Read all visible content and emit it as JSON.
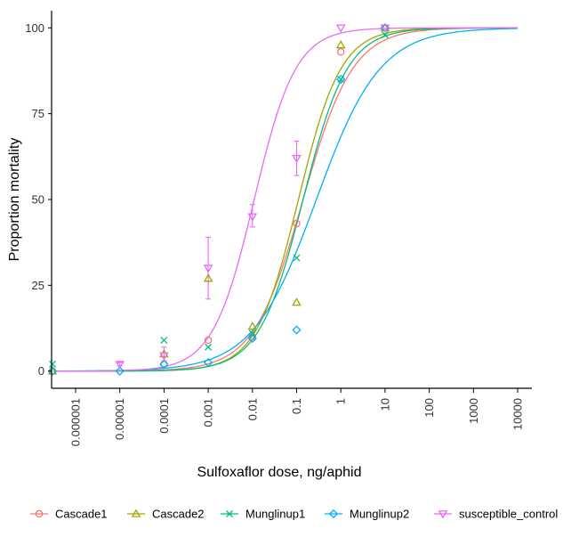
{
  "chart_data": {
    "type": "scatter",
    "title": "",
    "xlabel": "Sulfoxaflor dose, ng/aphid",
    "ylabel": "Proportion mortality",
    "x_scale": "log10",
    "xlim": [
      3e-07,
      20000
    ],
    "ylim": [
      -5,
      105
    ],
    "grid": false,
    "legend_position": "bottom",
    "x_ticks": [
      {
        "value": 1e-06,
        "label": "0.000001"
      },
      {
        "value": 1e-05,
        "label": "0.00001"
      },
      {
        "value": 0.0001,
        "label": "0.0001"
      },
      {
        "value": 0.001,
        "label": "0.001"
      },
      {
        "value": 0.01,
        "label": "0.01"
      },
      {
        "value": 0.1,
        "label": "0.1"
      },
      {
        "value": 1,
        "label": "1"
      },
      {
        "value": 10,
        "label": "10"
      },
      {
        "value": 100,
        "label": "100"
      },
      {
        "value": 1000,
        "label": "1000"
      },
      {
        "value": 10000,
        "label": "10000"
      }
    ],
    "y_ticks": [
      {
        "value": 0,
        "label": "0"
      },
      {
        "value": 25,
        "label": "25"
      },
      {
        "value": 50,
        "label": "50"
      },
      {
        "value": 75,
        "label": "75"
      },
      {
        "value": 100,
        "label": "100"
      }
    ],
    "series": [
      {
        "name": "Cascade1",
        "color": "#F8766D",
        "marker": "circle",
        "fit": {
          "ld50": 0.14,
          "slope": 0.56
        },
        "points": [
          {
            "x": 3e-07,
            "y": 0
          },
          {
            "x": 0.0001,
            "y": 2
          },
          {
            "x": 0.001,
            "y": 9
          },
          {
            "x": 0.01,
            "y": 10
          },
          {
            "x": 0.1,
            "y": 43
          },
          {
            "x": 1,
            "y": 93
          },
          {
            "x": 10,
            "y": 100
          }
        ]
      },
      {
        "name": "Cascade2",
        "color": "#A3A500",
        "marker": "triangle",
        "fit": {
          "ld50": 0.11,
          "slope": 0.48
        },
        "points": [
          {
            "x": 3e-07,
            "y": 0
          },
          {
            "x": 0.0001,
            "y": 5
          },
          {
            "x": 0.001,
            "y": 27
          },
          {
            "x": 0.01,
            "y": 13
          },
          {
            "x": 0.1,
            "y": 20
          },
          {
            "x": 1,
            "y": 95
          },
          {
            "x": 10,
            "y": 100
          }
        ]
      },
      {
        "name": "Munglinup1",
        "color": "#00BF7D",
        "marker": "x",
        "fit": {
          "ld50": 0.14,
          "slope": 0.5
        },
        "points": [
          {
            "x": 3e-07,
            "y": 2
          },
          {
            "x": 0.0001,
            "y": 9
          },
          {
            "x": 0.001,
            "y": 7
          },
          {
            "x": 0.01,
            "y": 11
          },
          {
            "x": 0.1,
            "y": 33
          },
          {
            "x": 1,
            "y": 85
          },
          {
            "x": 10,
            "y": 98
          }
        ]
      },
      {
        "name": "Munglinup2",
        "color": "#00B0F6",
        "marker": "diamond",
        "fit": {
          "ld50": 0.28,
          "slope": 0.72
        },
        "points": [
          {
            "x": 3e-07,
            "y": 0
          },
          {
            "x": 1e-05,
            "y": 0
          },
          {
            "x": 0.0001,
            "y": 2
          },
          {
            "x": 0.001,
            "y": 2.5
          },
          {
            "x": 0.01,
            "y": 9.5
          },
          {
            "x": 0.1,
            "y": 12
          },
          {
            "x": 1,
            "y": 85
          },
          {
            "x": 10,
            "y": 100
          }
        ]
      },
      {
        "name": "susceptible_control",
        "color": "#E76BF3",
        "marker": "triangle-down",
        "fit": {
          "ld50": 0.011,
          "slope": 0.47
        },
        "points": [
          {
            "x": 1e-05,
            "y": 2,
            "err": [
              1.5,
              2.5
            ]
          },
          {
            "x": 0.0001,
            "y": 4.5,
            "err": [
              3,
              7
            ]
          },
          {
            "x": 0.001,
            "y": 30,
            "err": [
              21,
              39
            ]
          },
          {
            "x": 0.01,
            "y": 45,
            "err": [
              42,
              48.5
            ]
          },
          {
            "x": 0.1,
            "y": 62,
            "err": [
              57,
              67
            ]
          },
          {
            "x": 1,
            "y": 100,
            "err": [
              100,
              100
            ]
          },
          {
            "x": 10,
            "y": 100,
            "err": [
              100,
              100
            ]
          }
        ]
      }
    ]
  }
}
